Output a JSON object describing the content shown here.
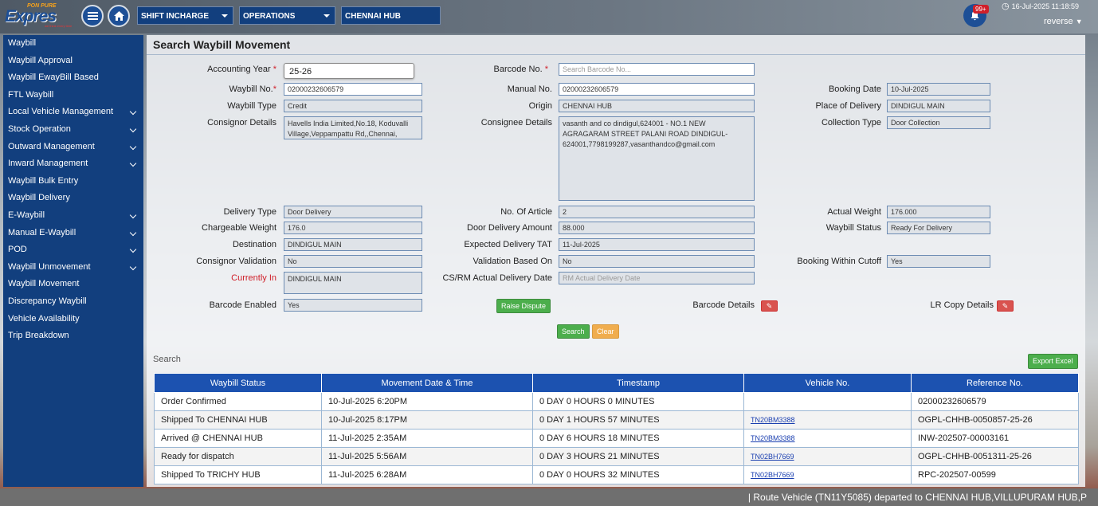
{
  "header": {
    "logo_tag": "PON PURE",
    "logo_text": "Expres",
    "logo_tagline": "we think every time",
    "role_select": "SHIFT INCHARGE",
    "dept_select": "OPERATIONS",
    "hub_select": "CHENNAI HUB",
    "notifications_badge": "99+",
    "datetime": "16-Jul-2025 11:18:59",
    "username": "reverse"
  },
  "sidebar": {
    "items": [
      {
        "label": "Waybill",
        "expandable": false
      },
      {
        "label": "Waybill Approval",
        "expandable": false
      },
      {
        "label": "Waybill EwayBill Based",
        "expandable": false
      },
      {
        "label": "FTL Waybill",
        "expandable": false
      },
      {
        "label": "Local Vehicle Management",
        "expandable": true
      },
      {
        "label": "Stock Operation",
        "expandable": true
      },
      {
        "label": "Outward Management",
        "expandable": true
      },
      {
        "label": "Inward Management",
        "expandable": true
      },
      {
        "label": "Waybill Bulk Entry",
        "expandable": false
      },
      {
        "label": "Waybill Delivery",
        "expandable": false
      },
      {
        "label": "E-Waybill",
        "expandable": true
      },
      {
        "label": "Manual E-Waybill",
        "expandable": true
      },
      {
        "label": "POD",
        "expandable": true
      },
      {
        "label": "Waybill Unmovement",
        "expandable": true
      },
      {
        "label": "Waybill Movement",
        "expandable": false
      },
      {
        "label": "Discrepancy Waybill",
        "expandable": false
      },
      {
        "label": "Vehicle Availability",
        "expandable": false
      },
      {
        "label": "Trip Breakdown",
        "expandable": false
      }
    ]
  },
  "page": {
    "title": "Search Waybill Movement"
  },
  "form": {
    "accounting_year_label": "Accounting Year",
    "accounting_year": "25-26",
    "barcode_label": "Barcode No.",
    "barcode_placeholder": "Search Barcode No...",
    "waybill_no_label": "Waybill No.",
    "waybill_no": "02000232606579",
    "manual_no_label": "Manual No.",
    "manual_no": "02000232606579",
    "booking_date_label": "Booking Date",
    "booking_date": "10-Jul-2025",
    "waybill_type_label": "Waybill Type",
    "waybill_type": "Credit",
    "origin_label": "Origin",
    "origin": "CHENNAI HUB",
    "place_of_delivery_label": "Place of Delivery",
    "place_of_delivery": "DINDIGUL MAIN",
    "consignor_details_label": "Consignor Details",
    "consignor_details": "Havells India Limited,No.18, Koduvalli Village,Veppampattu Rd,,Chennai,",
    "consignee_details_label": "Consignee Details",
    "consignee_details": "vasanth and co dindigul,624001 - NO.1 NEW AGRAGARAM STREET PALANI ROAD DINDIGUL-624001,7798199287,vasanthandco@gmail.com",
    "collection_type_label": "Collection Type",
    "collection_type": "Door Collection",
    "delivery_type_label": "Delivery Type",
    "delivery_type": "Door Delivery",
    "no_of_article_label": "No. Of Article",
    "no_of_article": "2",
    "actual_weight_label": "Actual Weight",
    "actual_weight": "176.000",
    "chargeable_weight_label": "Chargeable Weight",
    "chargeable_weight": "176.0",
    "door_delivery_amount_label": "Door Delivery Amount",
    "door_delivery_amount": "88.000",
    "waybill_status_label": "Waybill Status",
    "waybill_status": "Ready For Delivery",
    "destination_label": "Destination",
    "destination": "DINDIGUL MAIN",
    "expected_tat_label": "Expected Delivery TAT",
    "expected_tat": "11-Jul-2025",
    "consignor_validation_label": "Consignor Validation",
    "consignor_validation": "No",
    "validation_based_on_label": "Validation Based On",
    "validation_based_on": "No",
    "booking_cutoff_label": "Booking Within Cutoff",
    "booking_cutoff": "Yes",
    "currently_in_label": "Currently In",
    "currently_in": "DINDIGUL MAIN",
    "csrm_delivery_label": "CS/RM Actual Delivery Date",
    "csrm_delivery_placeholder": "RM Actual Delivery Date",
    "barcode_enabled_label": "Barcode Enabled",
    "barcode_enabled": "Yes",
    "raise_dispute_label": "Raise Dispute",
    "barcode_details_label": "Barcode Details",
    "lr_copy_details_label": "LR Copy Details",
    "search_button": "Search",
    "clear_button": "Clear",
    "required_marker": "*"
  },
  "results": {
    "search_label": "Search",
    "export_label": "Export Excel",
    "columns": [
      "Waybill Status",
      "Movement Date & Time",
      "Timestamp",
      "Vehicle No.",
      "Reference No."
    ],
    "rows": [
      [
        "Order Confirmed",
        "10-Jul-2025 6:20PM",
        "0 DAY 0 HOURS 0 MINUTES",
        "",
        "02000232606579"
      ],
      [
        "Shipped To CHENNAI HUB",
        "10-Jul-2025 8:17PM",
        "0 DAY 1 HOURS 57 MINUTES",
        "TN20BM3388",
        "OGPL-CHHB-0050857-25-26"
      ],
      [
        "Arrived @ CHENNAI HUB",
        "11-Jul-2025 2:35AM",
        "0 DAY 6 HOURS 18 MINUTES",
        "TN20BM3388",
        "INW-202507-00003161"
      ],
      [
        "Ready for dispatch",
        "11-Jul-2025 5:56AM",
        "0 DAY 3 HOURS 21 MINUTES",
        "TN02BH7669",
        "OGPL-CHHB-0051311-25-26"
      ],
      [
        "Shipped To TRICHY HUB",
        "11-Jul-2025 6:28AM",
        "0 DAY 0 HOURS 32 MINUTES",
        "TN02BH7669",
        "RPC-202507-00599"
      ]
    ]
  },
  "ticker": {
    "text": "| Route Vehicle (TN11Y5085) departed to CHENNAI HUB,VILLUPURAM HUB,P"
  },
  "colors": {
    "primary": "#123f7e",
    "table_header": "#1c52b0",
    "button_green": "#4cae4c",
    "button_orange": "#f0ad4e",
    "required": "#d0202a"
  },
  "icons": {
    "menu": "hamburger-icon",
    "home": "home-icon",
    "notifications": "bell-icon",
    "clock": "clock-icon",
    "edit": "edit-icon"
  }
}
